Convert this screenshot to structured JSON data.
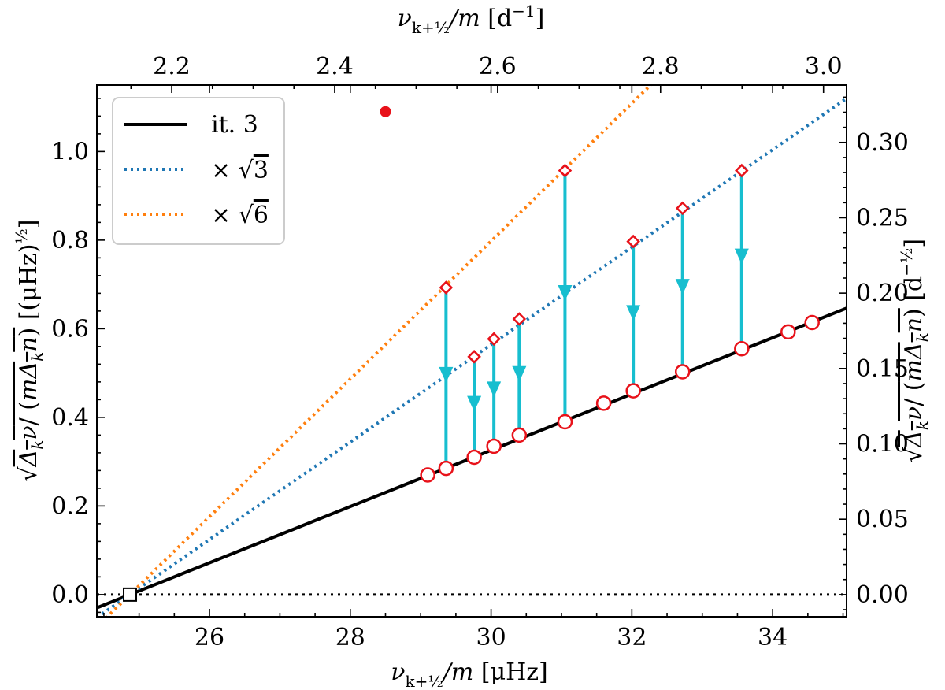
{
  "chart_data": {
    "type": "scatter",
    "x_bottom": {
      "label_text": "ν",
      "label_sub": "k+½",
      "label_rest": "/m [μHz]",
      "range": [
        24.4,
        35.05
      ],
      "ticks": [
        26,
        28,
        30,
        32,
        34
      ],
      "tick_labels": [
        "26",
        "28",
        "30",
        "32",
        "34"
      ]
    },
    "x_top": {
      "label_text": "ν",
      "label_sub": "k+½",
      "label_rest": "/m [d⁻¹]",
      "ticks": [
        2.2,
        2.4,
        2.6,
        2.8,
        3.0
      ],
      "tick_labels": [
        "2.2",
        "2.4",
        "2.6",
        "2.8",
        "3.0"
      ]
    },
    "y_left": {
      "label": "√(Δ_k ν / (m Δ_k n)) [(μHz)^½]",
      "range": [
        -0.05,
        1.15
      ],
      "ticks": [
        0.0,
        0.2,
        0.4,
        0.6,
        0.8,
        1.0
      ],
      "tick_labels": [
        "0.0",
        "0.2",
        "0.4",
        "0.6",
        "0.8",
        "1.0"
      ]
    },
    "y_right": {
      "label": "√(Δ_k ν / (m Δ_k n)) [d^-½]",
      "ticks": [
        0.0,
        0.05,
        0.1,
        0.15,
        0.2,
        0.25,
        0.3
      ],
      "tick_labels": [
        "0.00",
        "0.05",
        "0.10",
        "0.15",
        "0.20",
        "0.25",
        "0.30"
      ]
    },
    "lines": [
      {
        "name": "it. 3",
        "style": "solid",
        "color": "#000000",
        "x0": 24.87,
        "slope": 0.0635
      },
      {
        "name": "× √3",
        "style": "dotted",
        "color": "#1f77b4",
        "x0": 24.87,
        "slope": 0.11
      },
      {
        "name": "× √6",
        "style": "dotted",
        "color": "#ff7f0e",
        "x0": 24.87,
        "slope": 0.1555
      }
    ],
    "zero_line": {
      "y": 0.0,
      "style": "dotted",
      "color": "#000000"
    },
    "origin_marker": {
      "x": 24.87,
      "y": 0.0,
      "shape": "square"
    },
    "red_dot": {
      "x": 28.5,
      "y": 1.09
    },
    "circles": [
      {
        "x": 29.1,
        "y": 0.27
      },
      {
        "x": 29.36,
        "y": 0.285
      },
      {
        "x": 29.76,
        "y": 0.31
      },
      {
        "x": 30.04,
        "y": 0.335
      },
      {
        "x": 30.4,
        "y": 0.36
      },
      {
        "x": 31.05,
        "y": 0.39
      },
      {
        "x": 31.6,
        "y": 0.432
      },
      {
        "x": 32.02,
        "y": 0.46
      },
      {
        "x": 32.72,
        "y": 0.503
      },
      {
        "x": 33.56,
        "y": 0.555
      },
      {
        "x": 34.22,
        "y": 0.593
      },
      {
        "x": 34.56,
        "y": 0.614
      }
    ],
    "diamonds": [
      {
        "x": 29.36,
        "y": 0.693
      },
      {
        "x": 29.76,
        "y": 0.537
      },
      {
        "x": 30.04,
        "y": 0.577
      },
      {
        "x": 30.4,
        "y": 0.622
      },
      {
        "x": 31.05,
        "y": 0.957
      },
      {
        "x": 32.02,
        "y": 0.797
      },
      {
        "x": 32.72,
        "y": 0.872
      },
      {
        "x": 33.56,
        "y": 0.957
      }
    ],
    "arrows": [
      {
        "x": 29.36,
        "y_from": 0.693,
        "y_to": 0.285
      },
      {
        "x": 29.76,
        "y_from": 0.537,
        "y_to": 0.31
      },
      {
        "x": 30.04,
        "y_from": 0.577,
        "y_to": 0.335
      },
      {
        "x": 30.4,
        "y_from": 0.622,
        "y_to": 0.36
      },
      {
        "x": 31.05,
        "y_from": 0.957,
        "y_to": 0.39
      },
      {
        "x": 32.02,
        "y_from": 0.797,
        "y_to": 0.46
      },
      {
        "x": 32.72,
        "y_from": 0.872,
        "y_to": 0.503
      },
      {
        "x": 33.56,
        "y_from": 0.957,
        "y_to": 0.555
      }
    ],
    "legend": {
      "placement": "top-left",
      "entries": [
        {
          "label": "it. 3",
          "style": "solid",
          "color": "#000000"
        },
        {
          "label_prefix": "× ",
          "label_root": "3",
          "style": "dotted",
          "color": "#1f77b4"
        },
        {
          "label_prefix": "× ",
          "label_root": "6",
          "style": "dotted",
          "color": "#ff7f0e"
        }
      ]
    },
    "colors": {
      "arrow": "#17becf",
      "marker_red": "#e8121a",
      "blue": "#1f77b4",
      "orange": "#ff7f0e"
    }
  }
}
